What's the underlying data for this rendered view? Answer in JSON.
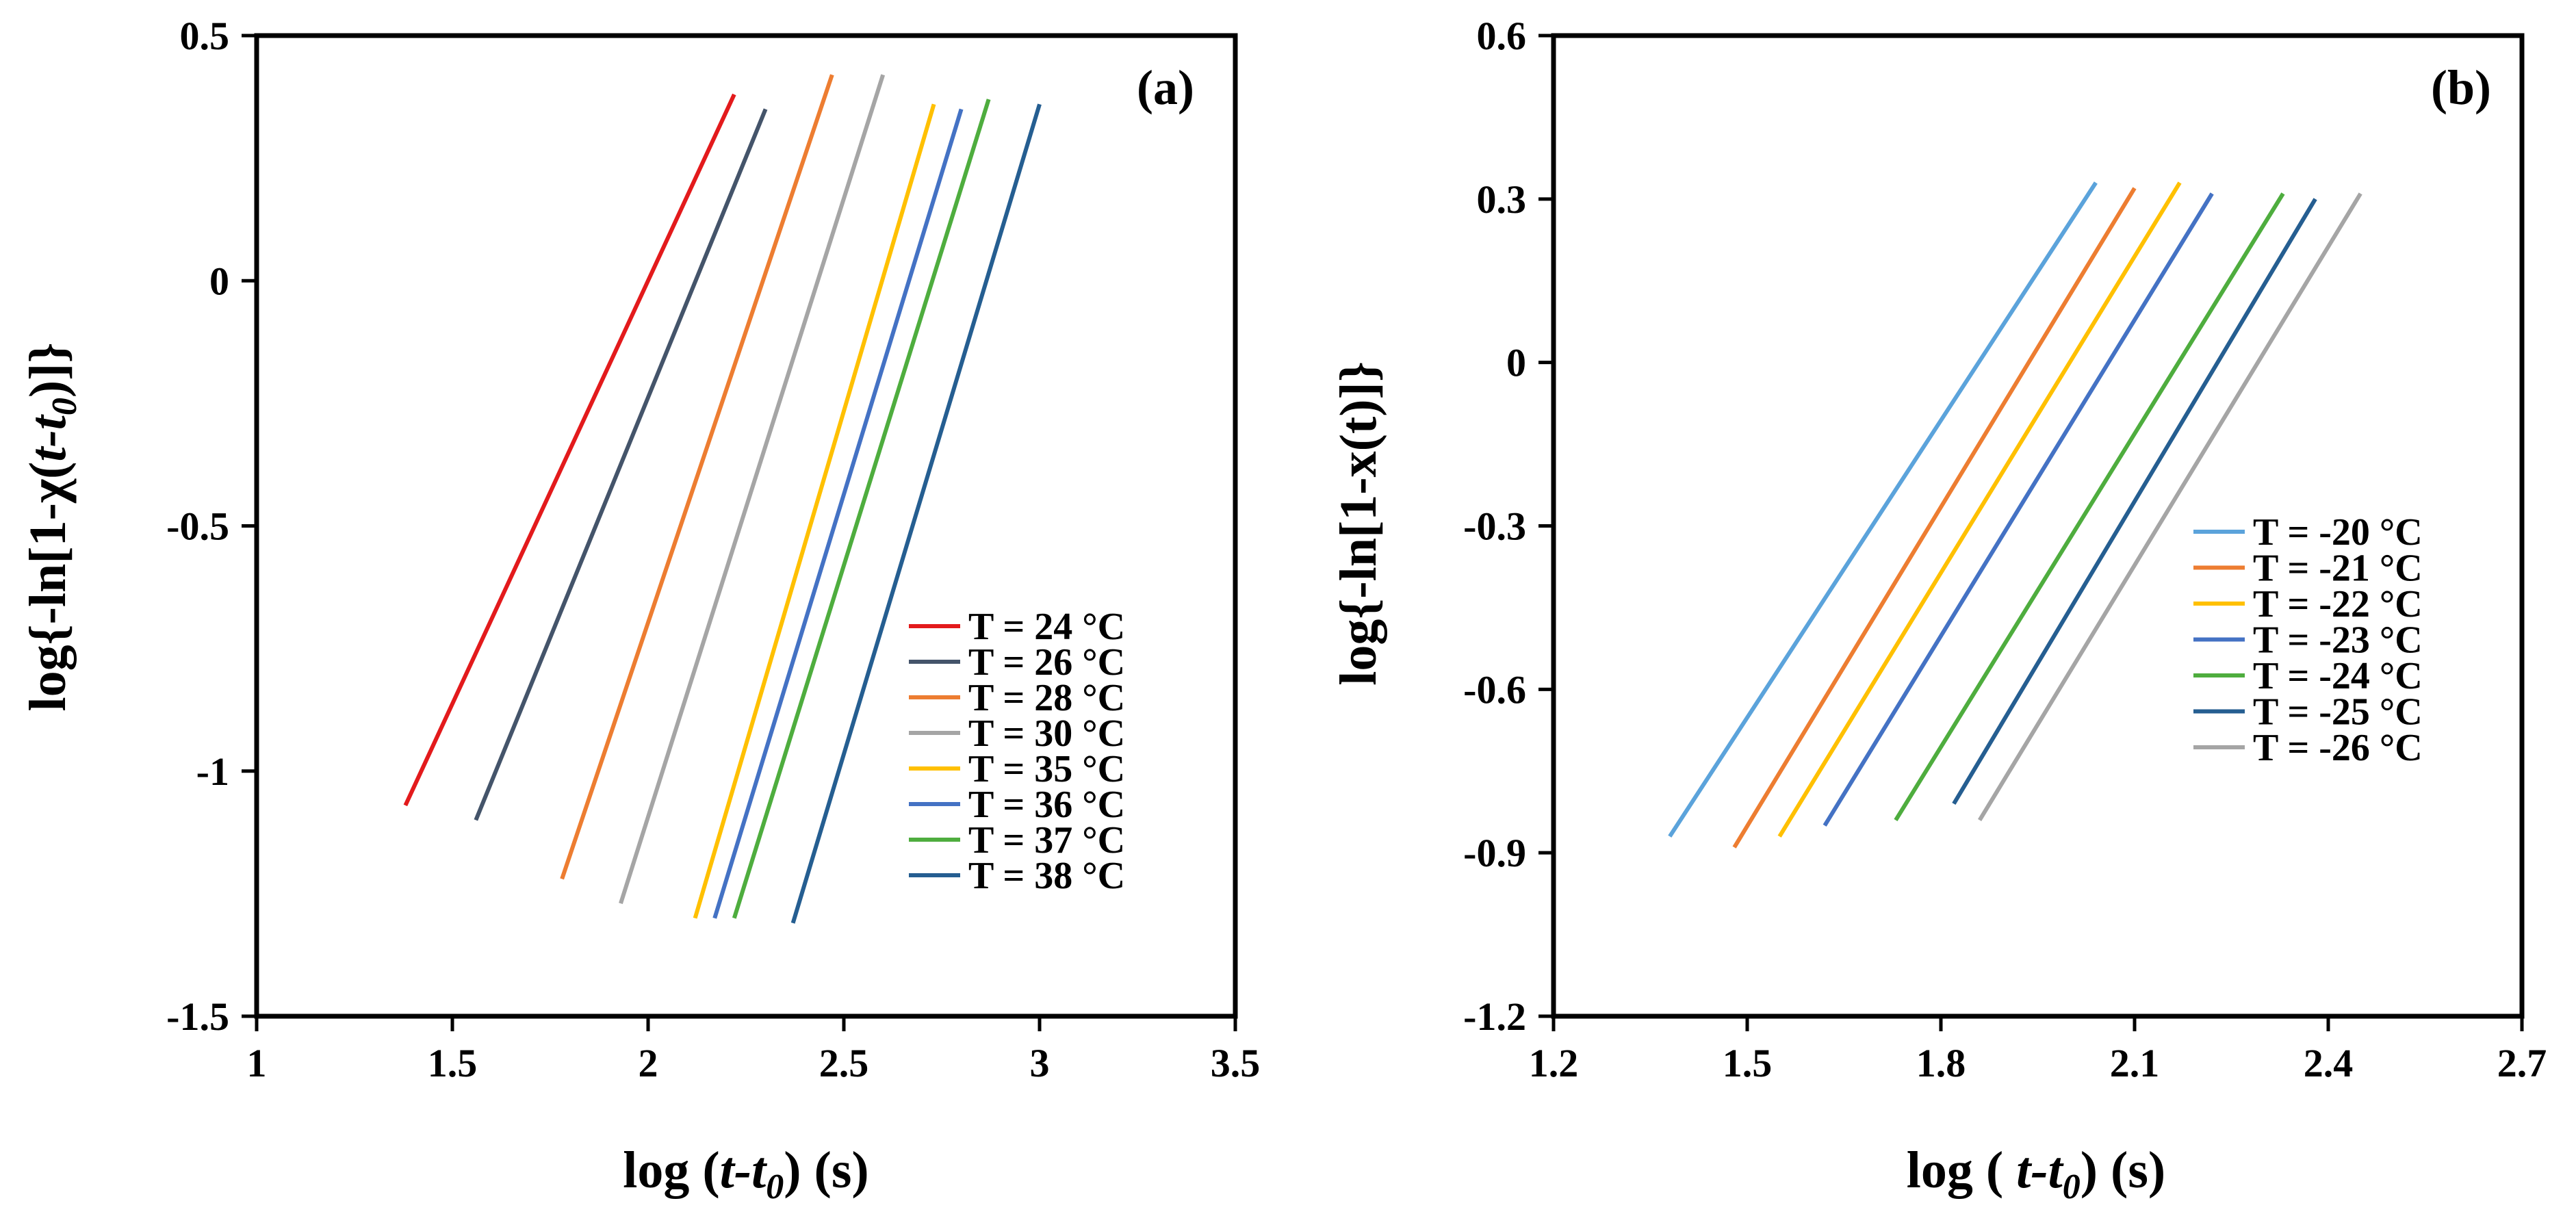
{
  "chart_data": [
    {
      "type": "line",
      "panel_label": "(a)",
      "xlabel_parts": [
        "log (",
        "t-t",
        "0",
        ") (s)"
      ],
      "ylabel_parts": [
        "log{-ln[1-χ(",
        "t-t",
        "0",
        ")]}"
      ],
      "xlim": [
        1,
        3.5
      ],
      "ylim": [
        -1.5,
        0.5
      ],
      "xticks": [
        "1",
        "1.5",
        "2",
        "2.5",
        "3",
        "3.5"
      ],
      "yticks": [
        "0.5",
        "0",
        "-0.5",
        "-1",
        "-1.5"
      ],
      "legend_position": "bottom-right",
      "series": [
        {
          "name": "T = 24 °C",
          "color": "#E31A1C",
          "x": [
            1.38,
            2.22
          ],
          "y": [
            -1.07,
            0.38
          ]
        },
        {
          "name": "T = 26 °C",
          "color": "#44546A",
          "x": [
            1.56,
            2.3
          ],
          "y": [
            -1.1,
            0.35
          ]
        },
        {
          "name": "T = 28 °C",
          "color": "#ED7D31",
          "x": [
            1.78,
            2.47
          ],
          "y": [
            -1.22,
            0.42
          ]
        },
        {
          "name": "T = 30 °C",
          "color": "#A5A5A5",
          "x": [
            1.93,
            2.6
          ],
          "y": [
            -1.27,
            0.42
          ]
        },
        {
          "name": "T = 35 °C",
          "color": "#FFC000",
          "x": [
            2.12,
            2.73
          ],
          "y": [
            -1.3,
            0.36
          ]
        },
        {
          "name": "T = 36 °C",
          "color": "#4472C4",
          "x": [
            2.17,
            2.8
          ],
          "y": [
            -1.3,
            0.35
          ]
        },
        {
          "name": "T = 37 °C",
          "color": "#4EAD3E",
          "x": [
            2.22,
            2.87
          ],
          "y": [
            -1.3,
            0.37
          ]
        },
        {
          "name": "T = 38 °C",
          "color": "#255E91",
          "x": [
            2.37,
            3.0
          ],
          "y": [
            -1.31,
            0.36
          ]
        }
      ]
    },
    {
      "type": "line",
      "panel_label": "(b)",
      "xlabel_parts": [
        "log ( ",
        "t-t",
        "0",
        ") (s)"
      ],
      "ylabel_parts": [
        "log{-ln[1-x(t)]}"
      ],
      "xlim": [
        1.2,
        2.7
      ],
      "ylim": [
        -1.2,
        0.6
      ],
      "xticks": [
        "1.2",
        "1.5",
        "1.8",
        "2.1",
        "2.4",
        "2.7"
      ],
      "yticks": [
        "0.6",
        "0.3",
        "0",
        "-0.3",
        "-0.6",
        "-0.9",
        "-1.2"
      ],
      "legend_position": "bottom-right",
      "series": [
        {
          "name": "T = -20 °C",
          "color": "#5BA3DB",
          "x": [
            1.38,
            2.04
          ],
          "y": [
            -0.87,
            0.33
          ]
        },
        {
          "name": "T = -21 °C",
          "color": "#ED7D31",
          "x": [
            1.48,
            2.1
          ],
          "y": [
            -0.89,
            0.32
          ]
        },
        {
          "name": "T = -22 °C",
          "color": "#FFC000",
          "x": [
            1.55,
            2.17
          ],
          "y": [
            -0.87,
            0.33
          ]
        },
        {
          "name": "T = -23 °C",
          "color": "#4472C4",
          "x": [
            1.62,
            2.22
          ],
          "y": [
            -0.85,
            0.31
          ]
        },
        {
          "name": "T = -24 °C",
          "color": "#4EAD3E",
          "x": [
            1.73,
            2.33
          ],
          "y": [
            -0.84,
            0.31
          ]
        },
        {
          "name": "T = -25 °C",
          "color": "#255E91",
          "x": [
            1.82,
            2.38
          ],
          "y": [
            -0.81,
            0.3
          ]
        },
        {
          "name": "T = -26 °C",
          "color": "#A5A5A5",
          "x": [
            1.86,
            2.45
          ],
          "y": [
            -0.84,
            0.31
          ]
        }
      ]
    }
  ]
}
